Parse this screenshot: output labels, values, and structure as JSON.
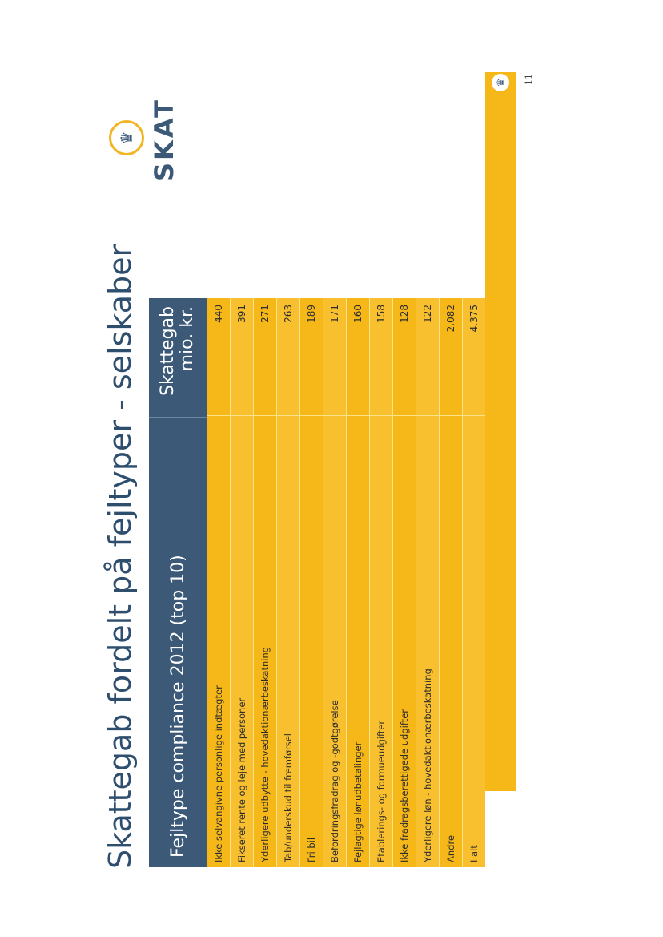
{
  "title": "Skattegab fordelt på fejltyper - selskaber",
  "table": {
    "header_label": "Fejltype compliance 2012 (top 10)",
    "header_value_line1": "Skattegab",
    "header_value_line2": "mio. kr.",
    "rows": [
      {
        "label": "Ikke selvangivne personlige indtægter",
        "value": "440"
      },
      {
        "label": "Fikseret rente og leje med personer",
        "value": "391"
      },
      {
        "label": "Yderligere udbytte - hovedaktionærbeskatning",
        "value": "271"
      },
      {
        "label": "Tab/underskud til fremførsel",
        "value": "263"
      },
      {
        "label": "Fri bil",
        "value": "189"
      },
      {
        "label": "Befordringsfradrag og -godtgørelse",
        "value": "171"
      },
      {
        "label": "Fejlagtige lønudbetalinger",
        "value": "160"
      },
      {
        "label": "Etablerings- og formueudgifter",
        "value": "158"
      },
      {
        "label": "Ikke fradragsberettigede udgifter",
        "value": "128"
      },
      {
        "label": "Yderligere løn - hovedaktionærbeskatning",
        "value": "122"
      },
      {
        "label": "Andre",
        "value": "2.082"
      },
      {
        "label": "I alt",
        "value": "4.375"
      }
    ]
  },
  "logo": {
    "text": "SKAT",
    "icon": "crown-icon"
  },
  "page_number": "11",
  "colors": {
    "accent": "#f6b719",
    "header": "#3c5a78",
    "title": "#2e4e6e"
  }
}
